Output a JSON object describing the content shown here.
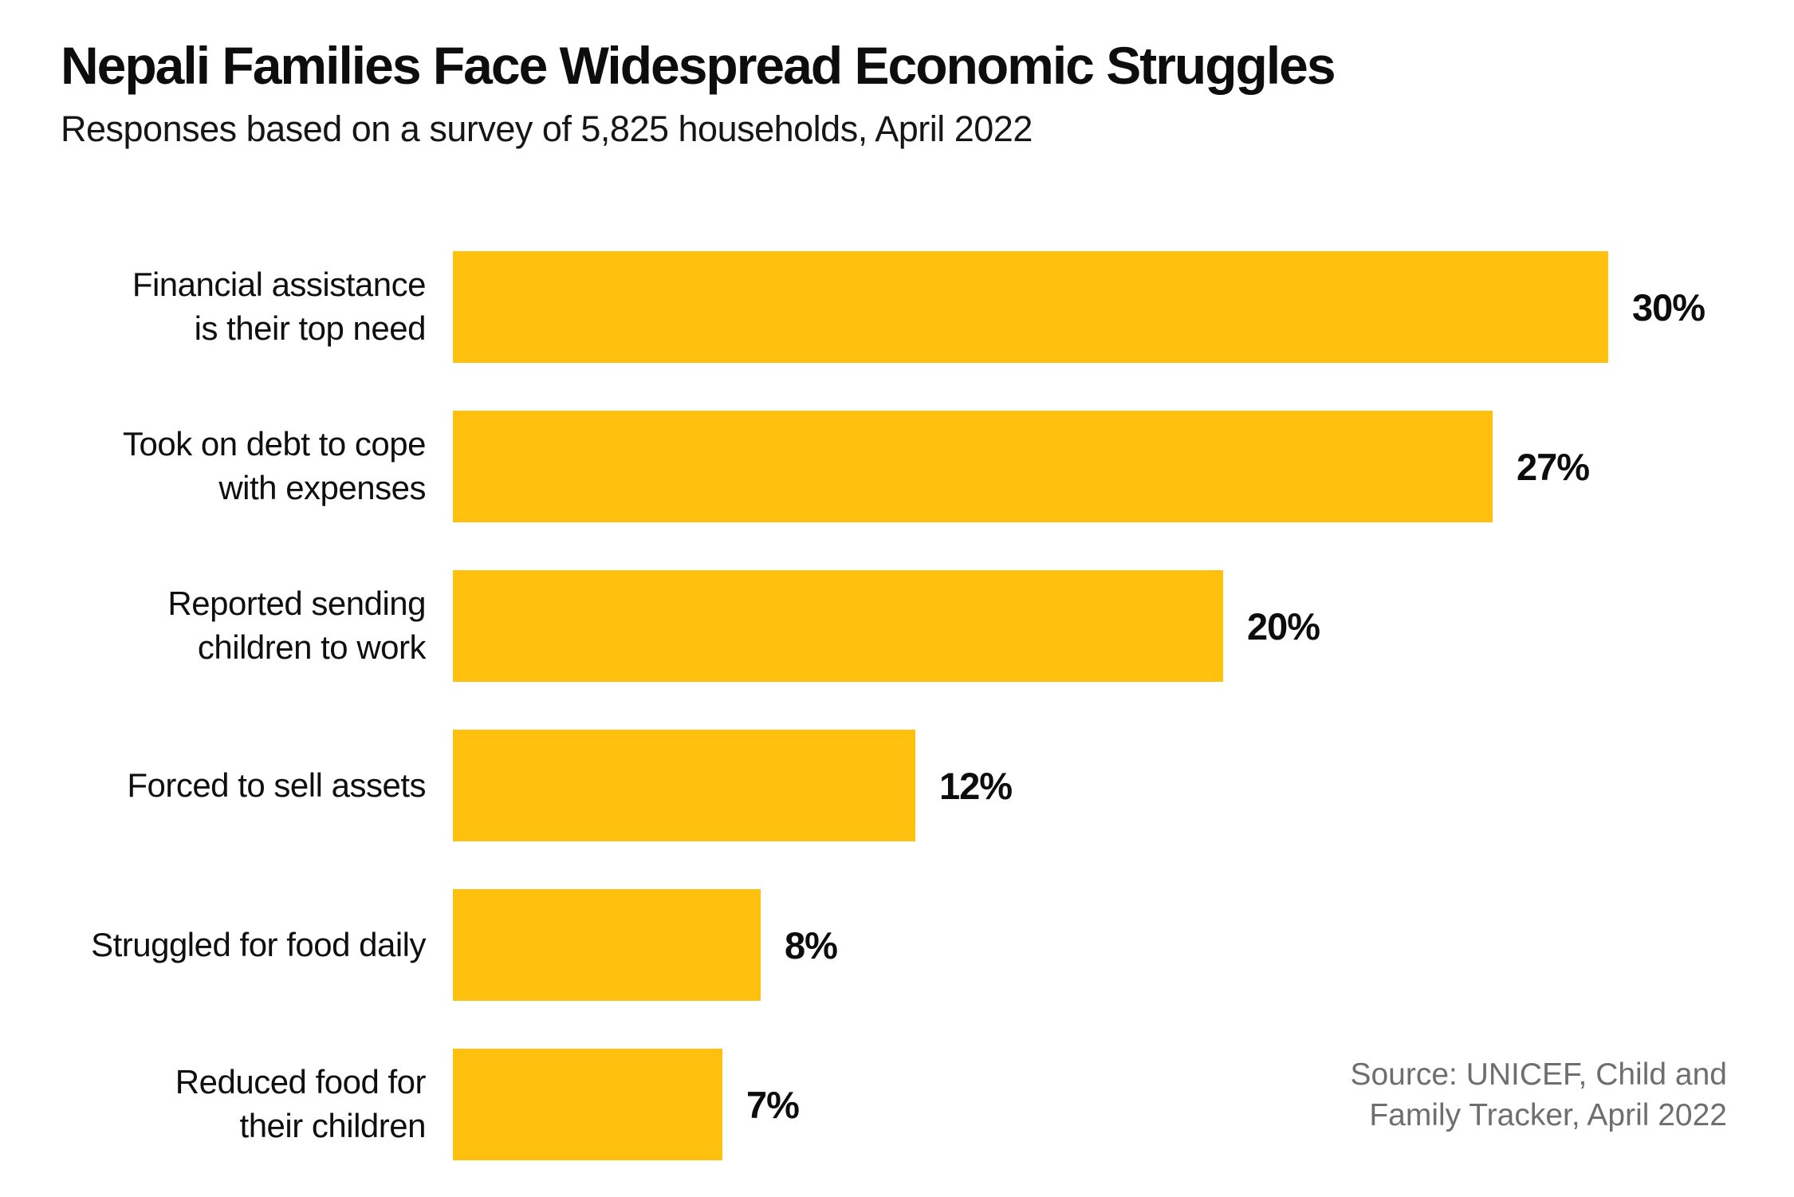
{
  "header": {
    "title": "Nepali Families Face Widespread Economic Struggles",
    "subtitle": "Responses based on a survey of 5,825 households, April 2022"
  },
  "source": {
    "text": "Source: UNICEF, Child and\nFamily Tracker, April 2022",
    "color": "#6e6e6e"
  },
  "chart_data": {
    "type": "bar",
    "orientation": "horizontal",
    "title": "Nepali Families Face Widespread Economic Struggles",
    "subtitle": "Responses based on a survey of 5,825 households, April 2022",
    "categories": [
      "Financial assistance\nis their top need",
      "Took on debt to cope\nwith expenses",
      "Reported sending\nchildren to work",
      "Forced to sell assets",
      "Struggled for food daily",
      "Reduced food for\ntheir children"
    ],
    "values": [
      30,
      27,
      20,
      12,
      8,
      7
    ],
    "value_labels": [
      "30%",
      "27%",
      "20%",
      "12%",
      "8%",
      "7%"
    ],
    "unit": "%",
    "xlim": [
      0,
      30
    ],
    "grid": false,
    "legend": false,
    "bar_color": "#FFC10E",
    "text_color": "#0d0d0d",
    "source": "Source: UNICEF, Child and Family Tracker, April 2022"
  }
}
